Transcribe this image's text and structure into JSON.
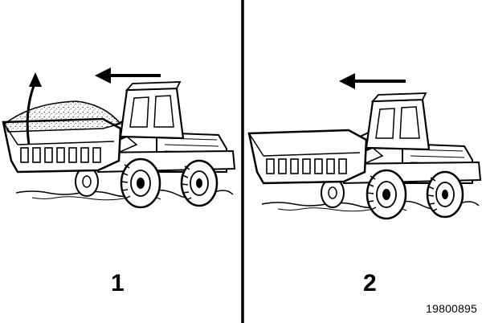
{
  "panels": [
    {
      "number": "1",
      "state": "bucket-loaded",
      "arrows": [
        "travel-direction-arrow",
        "bucket-curl-arrow"
      ]
    },
    {
      "number": "2",
      "state": "bucket-empty",
      "arrows": [
        "travel-direction-arrow"
      ]
    }
  ],
  "figure_id": "19800895",
  "colors": {
    "ink": "#000000",
    "background": "#ffffff"
  }
}
